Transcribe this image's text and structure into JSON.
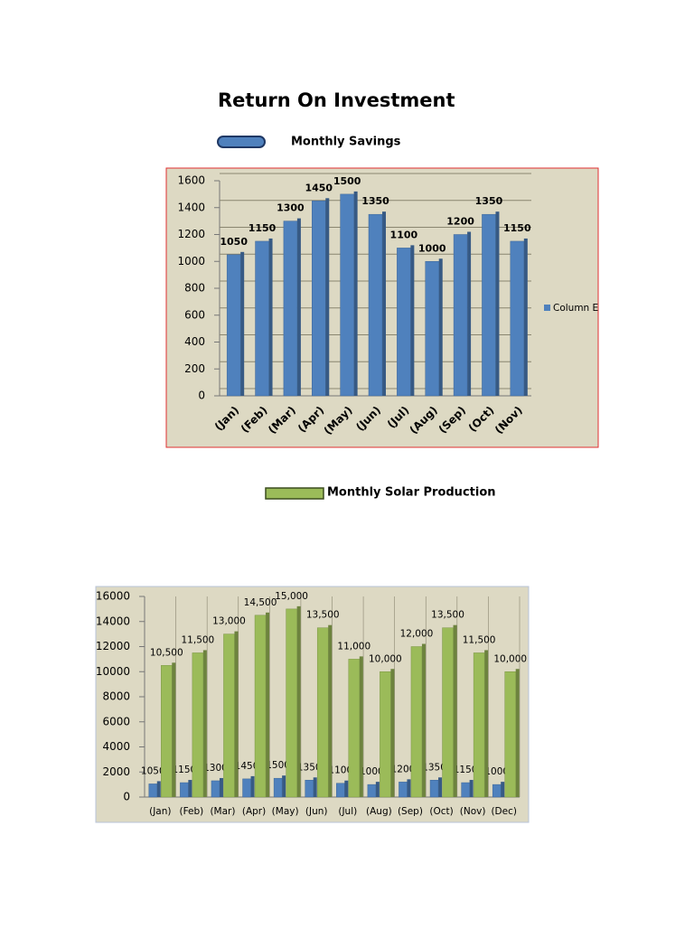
{
  "header": {
    "title": "Return On  Investment"
  },
  "labels": [
    "Monthly Savings",
    "Monthly Solar Production"
  ],
  "chart_data": [
    {
      "type": "bar",
      "categories": [
        "(Jan)",
        "(Feb)",
        "(Mar)",
        "(Apr)",
        "(May)",
        "(Jun)",
        "(Jul)",
        "(Aug)",
        "(Sep)",
        "(Oct)",
        "(Nov)"
      ],
      "series": [
        {
          "name": "Column E",
          "color": "#4f81bd",
          "values": [
            1050,
            1150,
            1300,
            1450,
            1500,
            1350,
            1100,
            1000,
            1200,
            1350,
            1150
          ]
        }
      ],
      "ylim": [
        0,
        1600
      ],
      "yticks": [
        0,
        200,
        400,
        600,
        800,
        1000,
        1200,
        1400,
        1600
      ],
      "grid": true,
      "legend": "right"
    },
    {
      "type": "bar",
      "categories": [
        "(Jan)",
        "(Feb)",
        "(Mar)",
        "(Apr)",
        "(May)",
        "(Jun)",
        "(Jul)",
        "(Aug)",
        "(Sep)",
        "(Oct)",
        "(Nov)",
        "(Dec)"
      ],
      "series": [
        {
          "color": "#4f81bd",
          "values": [
            1050,
            1150,
            1300,
            1450,
            1500,
            1350,
            1100,
            1000,
            1200,
            1350,
            1150,
            1000
          ]
        },
        {
          "color": "#9bbb59",
          "values": [
            10500,
            11500,
            13000,
            14500,
            15000,
            13500,
            11000,
            10000,
            12000,
            13500,
            11500,
            10000
          ],
          "value_labels": [
            "10,500",
            "11,500",
            "13,000",
            "14,500",
            "15,000",
            "13,500",
            "11,000",
            "10,000",
            "12,000",
            "13,500",
            "11,500",
            "10,000"
          ]
        }
      ],
      "ylim": [
        0,
        16000
      ],
      "yticks": [
        0,
        2000,
        4000,
        6000,
        8000,
        10000,
        12000,
        14000,
        16000
      ],
      "grid": false
    }
  ]
}
